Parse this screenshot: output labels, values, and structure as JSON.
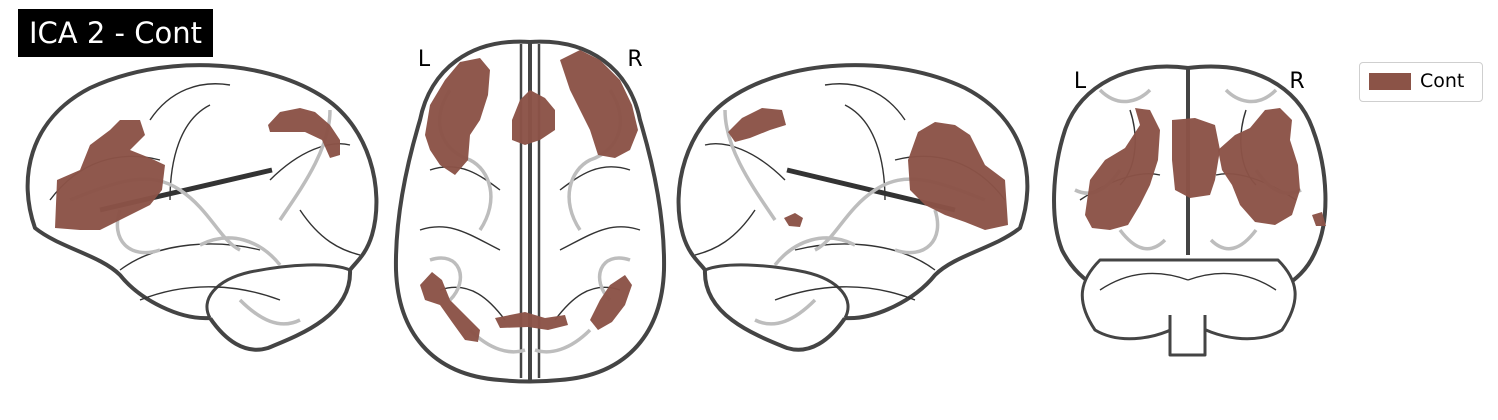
{
  "figure": {
    "title": "ICA 2 - Cont",
    "overlay_color": "#8b5347",
    "views": [
      {
        "view": "sagittal-left",
        "labels": []
      },
      {
        "view": "axial",
        "labels": [
          "L",
          "R"
        ]
      },
      {
        "view": "sagittal-right",
        "labels": []
      },
      {
        "view": "coronal",
        "labels": [
          "L",
          "R"
        ]
      }
    ]
  },
  "legend": {
    "items": [
      {
        "label": "Cont",
        "color": "#8b5347"
      }
    ]
  }
}
